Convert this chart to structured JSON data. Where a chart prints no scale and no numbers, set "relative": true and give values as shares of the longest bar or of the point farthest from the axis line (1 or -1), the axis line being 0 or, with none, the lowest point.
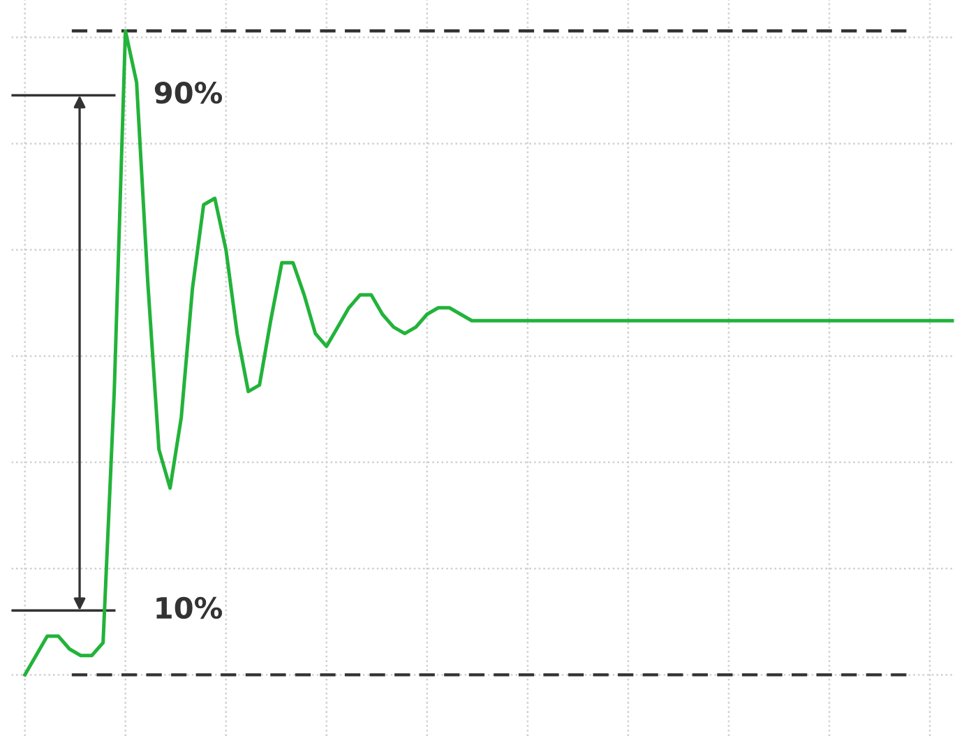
{
  "chart_data": {
    "type": "line",
    "relative": true,
    "categories": [
      null,
      null,
      null,
      null,
      null,
      null,
      null,
      null,
      null,
      null,
      null,
      null,
      null,
      null,
      null,
      null,
      null,
      null,
      null,
      null,
      null,
      null,
      null,
      null,
      null,
      null,
      null,
      null,
      null,
      null,
      null,
      null,
      null,
      null,
      null,
      null,
      null,
      null,
      null,
      null,
      null,
      null,
      null,
      null,
      null,
      null,
      null,
      null,
      null,
      null,
      null,
      null,
      null,
      null,
      null,
      null,
      null,
      null,
      null,
      null,
      null,
      null,
      null,
      null,
      null,
      null,
      null,
      null,
      null,
      null,
      null,
      null,
      null,
      null,
      null,
      null,
      null,
      null,
      null,
      null,
      null,
      null,
      null,
      null
    ],
    "series": [
      {
        "color": "#22b33a",
        "values": [
          0,
          0.03,
          0.06,
          0.06,
          0.04,
          0.03,
          0.03,
          0.05,
          0.44,
          1.0,
          0.92,
          0.61,
          0.35,
          0.29,
          0.4,
          0.6,
          0.73,
          0.74,
          0.66,
          0.53,
          0.44,
          0.45,
          0.55,
          0.64,
          0.64,
          0.59,
          0.53,
          0.51,
          0.54,
          0.57,
          0.59,
          0.59,
          0.56,
          0.54,
          0.53,
          0.54,
          0.56,
          0.57,
          0.57,
          0.56,
          0.55,
          0.55,
          0.55,
          0.55,
          0.55,
          0.55,
          0.55,
          0.55,
          0.55,
          0.55,
          0.55,
          0.55,
          0.55,
          0.55,
          0.55,
          0.55,
          0.55,
          0.55,
          0.55,
          0.55,
          0.55,
          0.55,
          0.55,
          0.55,
          0.55,
          0.55,
          0.55,
          0.55,
          0.55,
          0.55,
          0.55,
          0.55,
          0.55,
          0.55,
          0.55,
          0.55,
          0.55,
          0.55,
          0.55,
          0.55,
          0.55,
          0.55,
          0.55,
          0.55
        ]
      }
    ],
    "ref_lines": [
      {
        "axis": "y",
        "value": 1.0,
        "color": "#333333",
        "line_style": "dashed"
      },
      {
        "axis": "y",
        "value": 0.0,
        "color": "#333333",
        "line_style": "dashed"
      },
      {
        "axis": "y",
        "value": 0.9,
        "label": "90%",
        "color": "#333333",
        "line_style": "solid"
      },
      {
        "axis": "y",
        "value": 0.1,
        "label": "10%",
        "color": "#333333",
        "line_style": "solid"
      }
    ],
    "grid": true,
    "marker": "none",
    "line_style": "solid"
  }
}
